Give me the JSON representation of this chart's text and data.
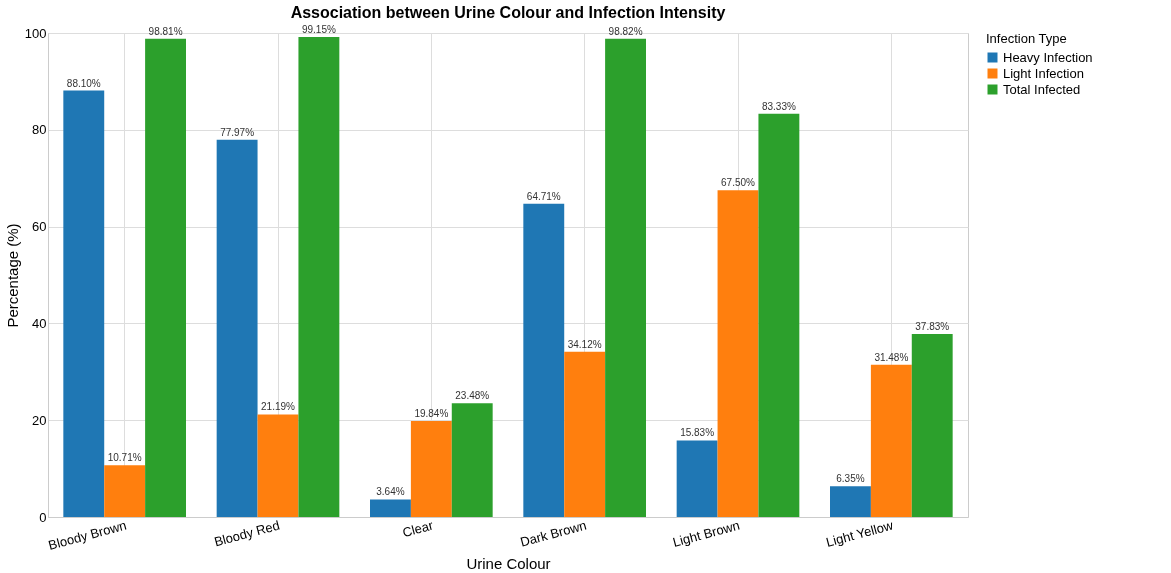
{
  "chart_data": {
    "type": "bar",
    "title": "Association between Urine Colour and Infection Intensity",
    "xlabel": "Urine Colour",
    "ylabel": "Percentage (%)",
    "legend_title": "Infection Type",
    "categories": [
      "Bloody Brown",
      "Bloody Red",
      "Clear",
      "Dark Brown",
      "Light Brown",
      "Light Yellow"
    ],
    "series": [
      {
        "name": "Heavy Infection",
        "color": "#1f77b4",
        "values": [
          88.1,
          77.97,
          3.64,
          64.71,
          15.83,
          6.35
        ],
        "value_labels": [
          "88.10%",
          "77.97%",
          "3.64%",
          "64.71%",
          "15.83%",
          "6.35%"
        ]
      },
      {
        "name": "Light Infection",
        "color": "#ff7f0e",
        "values": [
          10.71,
          21.19,
          19.84,
          34.12,
          67.5,
          31.48
        ],
        "value_labels": [
          "10.71%",
          "21.19%",
          "19.84%",
          "34.12%",
          "67.50%",
          "31.48%"
        ]
      },
      {
        "name": "Total Infected",
        "color": "#2ca02c",
        "values": [
          98.81,
          99.15,
          23.48,
          98.82,
          83.33,
          37.83
        ],
        "value_labels": [
          "98.81%",
          "99.15%",
          "23.48%",
          "98.82%",
          "83.33%",
          "37.83%"
        ]
      }
    ],
    "ylim": [
      0,
      100
    ],
    "yticks": [
      0,
      20,
      40,
      60,
      80,
      100
    ],
    "grid": true,
    "legend": "top right"
  }
}
